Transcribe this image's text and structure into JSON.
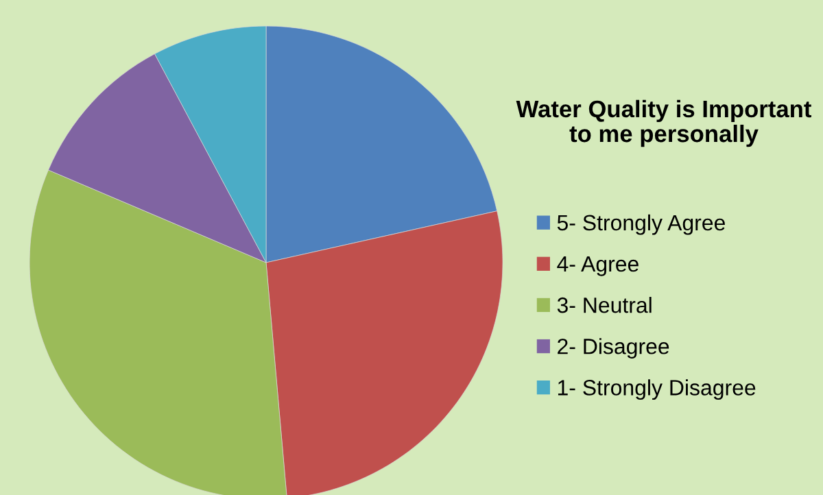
{
  "chart_data": {
    "type": "pie",
    "title": "Water Quality is Important to me personally",
    "categories": [
      "5- Strongly Agree",
      "4- Agree",
      "3- Neutral",
      "2- Disagree",
      "1- Strongly Disagree"
    ],
    "values": [
      21.5,
      27.1,
      32.8,
      10.8,
      7.8
    ],
    "colors": [
      "#4f81bd",
      "#c0504d",
      "#9bbb59",
      "#8064a2",
      "#4bacc6"
    ],
    "legend": "right"
  }
}
